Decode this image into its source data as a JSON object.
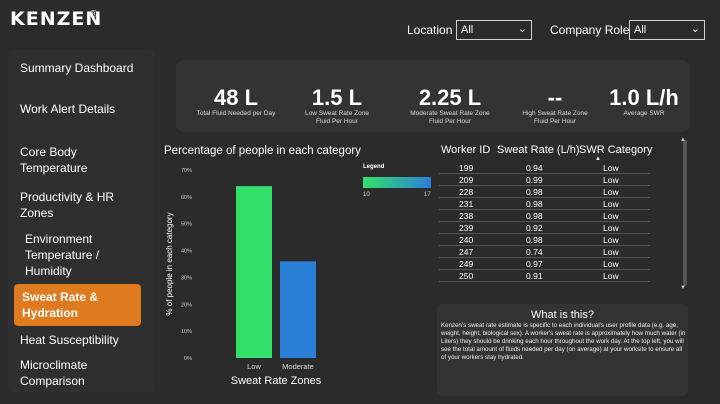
{
  "brand": {
    "name": "KENZEN",
    "mark": "®"
  },
  "filters": {
    "location_label": "Location",
    "location_value": "All",
    "role_label": "Company Role",
    "role_value": "All"
  },
  "sidebar": {
    "items": [
      {
        "label": "Summary Dashboard"
      },
      {
        "label": "Work Alert Details"
      },
      {
        "label": "Core Body Temperature"
      },
      {
        "label": "Productivity & HR Zones"
      },
      {
        "label": "Environment Temperature / Humidity"
      },
      {
        "label": "Sweat Rate & Hydration"
      },
      {
        "label": "Heat Susceptibility"
      },
      {
        "label": "Microclimate Comparison"
      }
    ]
  },
  "kpis": [
    {
      "value": "48 L",
      "label": "Total Fluid Needed per Day"
    },
    {
      "value": "1.5 L",
      "label": "Low Sweat Rate Zone Fluid Per Hour"
    },
    {
      "value": "2.25 L",
      "label": "Moderate Sweat Rate Zone Fluid Per Hour"
    },
    {
      "value": "--",
      "label": "High Sweat Rate Zone Fluid Per Hour"
    },
    {
      "value": "1.0 L/h",
      "label": "Average SWR"
    }
  ],
  "chart_data": {
    "type": "bar",
    "title": "Percentage of people in each category",
    "xlabel": "Sweat Rate Zones",
    "ylabel": "% of people in each category",
    "categories": [
      "Low",
      "Moderate"
    ],
    "values": [
      64,
      36
    ],
    "ylim": [
      0,
      70
    ],
    "yticks": [
      "0%",
      "10%",
      "20%",
      "30%",
      "40%",
      "50%",
      "60%",
      "70%"
    ],
    "bar_colors": [
      "#33e06a",
      "#2a7fd6"
    ],
    "legend": {
      "title": "Legend",
      "min": "10",
      "max": "17",
      "placement": "top-right"
    }
  },
  "table": {
    "headers": [
      "Worker ID",
      "Sweat Rate (L/h)",
      "SWR Category"
    ],
    "rows": [
      [
        "199",
        "0.94",
        "Low"
      ],
      [
        "209",
        "0.99",
        "Low"
      ],
      [
        "228",
        "0.98",
        "Low"
      ],
      [
        "231",
        "0.98",
        "Low"
      ],
      [
        "238",
        "0.98",
        "Low"
      ],
      [
        "239",
        "0.92",
        "Low"
      ],
      [
        "240",
        "0.98",
        "Low"
      ],
      [
        "247",
        "0.74",
        "Low"
      ],
      [
        "249",
        "0.97",
        "Low"
      ],
      [
        "250",
        "0.91",
        "Low"
      ]
    ]
  },
  "info": {
    "title": "What is this?",
    "body": "Kenzen's sweat rate estimate is specific to each individual's user profile data (e.g. age, weight, height, biological sex). A worker's sweat rate is approximately how much water (in Liters) they should be drinking each hour throughout the work day. At the top left, you will see the total amount of fluids needed per day (on average) at your worksite to ensure all of your workers stay hydrated."
  }
}
